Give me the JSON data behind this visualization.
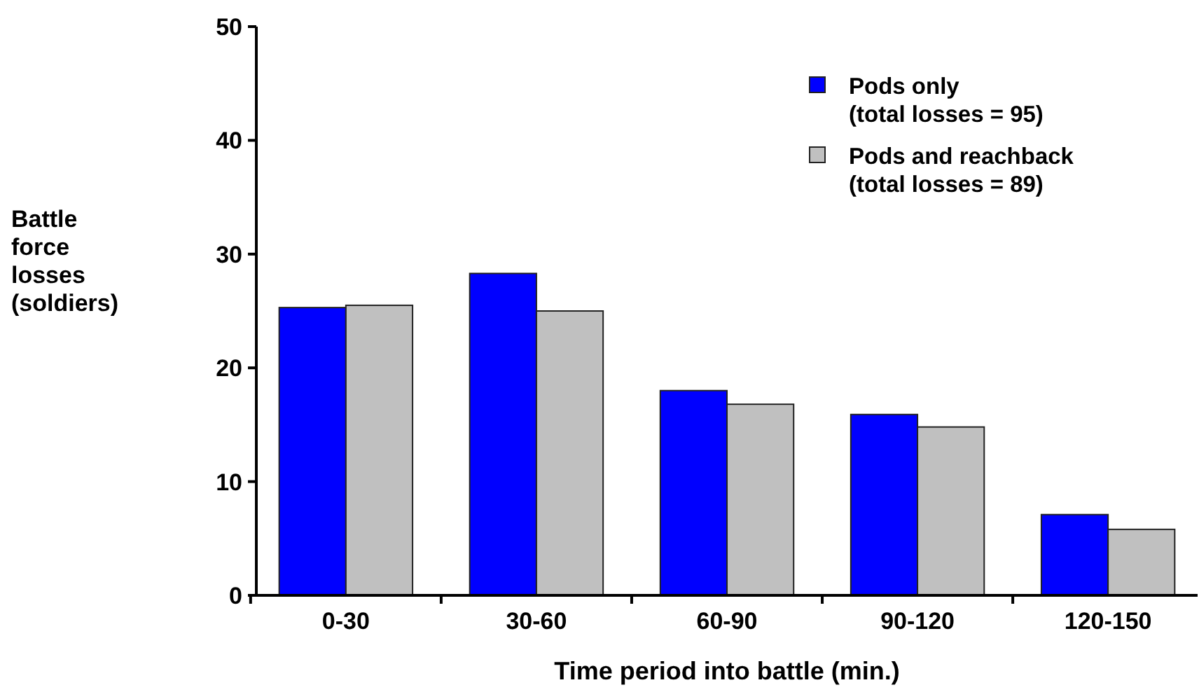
{
  "chart_data": {
    "type": "bar",
    "xlabel": "Time period into battle (min.)",
    "ylabel": "Battle force losses (soldiers)",
    "categories": [
      "0-30",
      "30-60",
      "60-90",
      "90-120",
      "120-150"
    ],
    "series": [
      {
        "name": "Pods only (total losses = 95)",
        "color": "#0000ff",
        "values": [
          25.3,
          28.3,
          18,
          15.9,
          7.1
        ]
      },
      {
        "name": "Pods and reachback (total losses = 89)",
        "color": "#c0c0c0",
        "values": [
          25.5,
          25,
          16.8,
          14.8,
          5.8
        ]
      }
    ],
    "ylim": [
      0,
      50
    ],
    "yticks": [
      0,
      10,
      20,
      30,
      40,
      50
    ],
    "grid": false,
    "legend": "top right"
  }
}
